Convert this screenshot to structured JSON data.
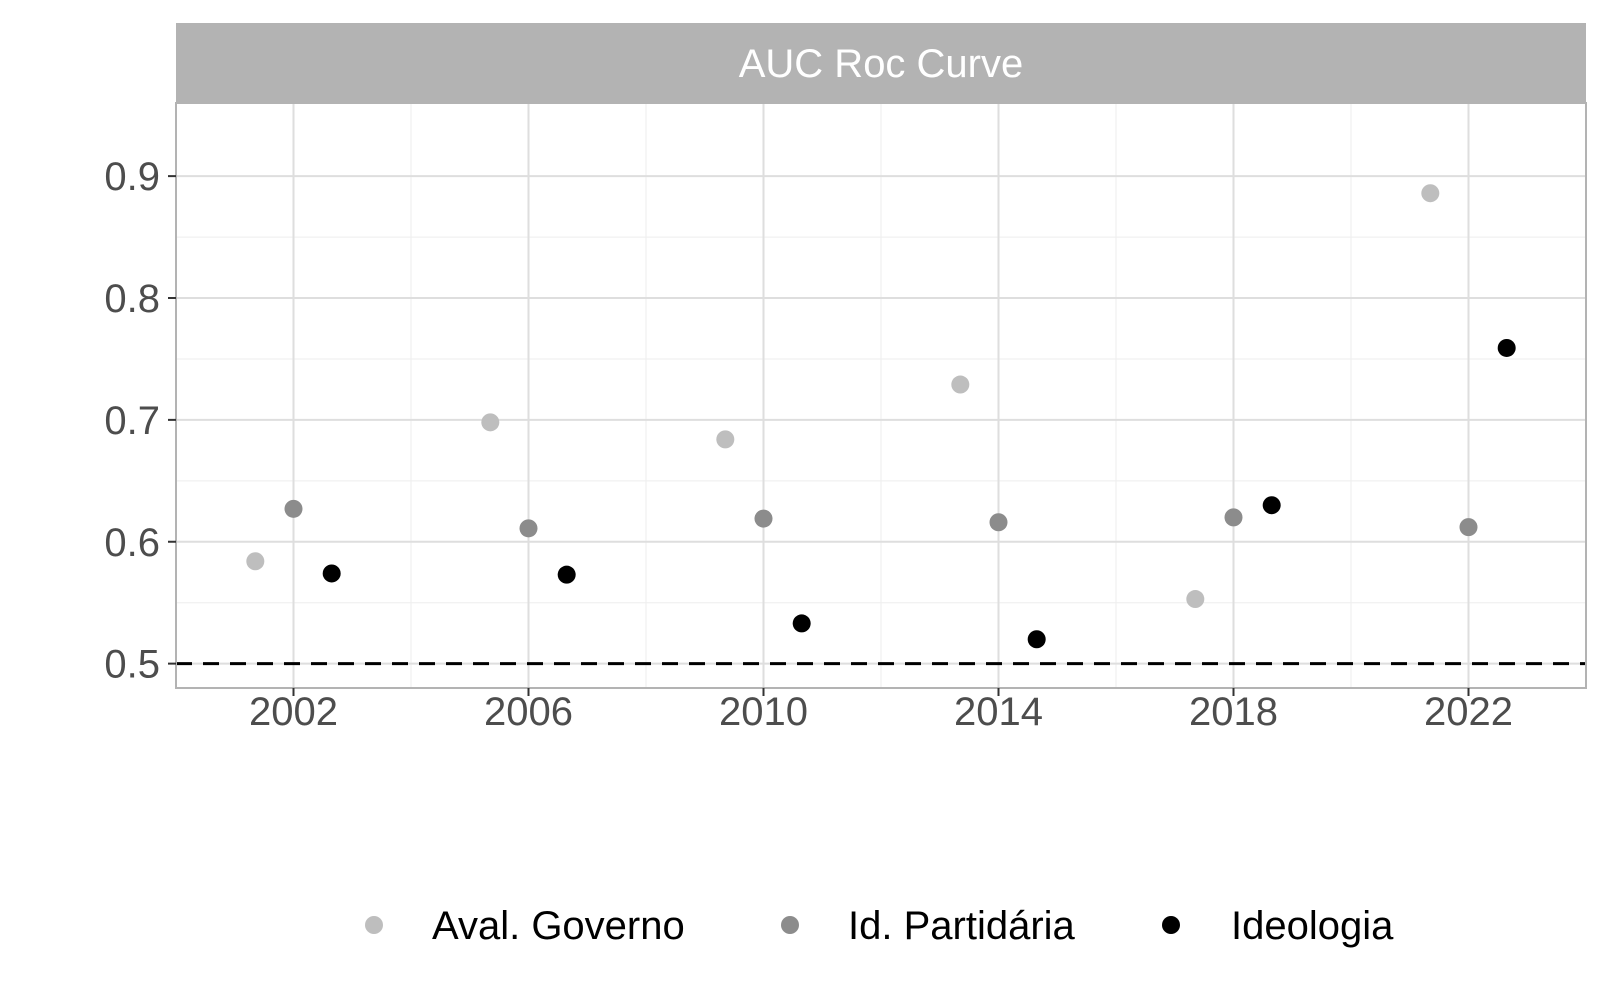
{
  "chart_data": {
    "type": "scatter",
    "title": "AUC Roc Curve",
    "xlabel": "",
    "ylabel": "",
    "xlim": [
      2000,
      2024
    ],
    "ylim": [
      0.48,
      0.96
    ],
    "x_ticks": [
      2002,
      2006,
      2010,
      2014,
      2018,
      2022
    ],
    "y_ticks": [
      0.5,
      0.6,
      0.7,
      0.8,
      0.9
    ],
    "y_tick_labels": [
      "0.5",
      "0.6",
      "0.7",
      "0.8",
      "0.9"
    ],
    "reference_line": {
      "y": 0.5,
      "style": "dashed",
      "color": "#000000"
    },
    "grid": true,
    "legend_position": "bottom",
    "series": [
      {
        "name": "Aval. Governo",
        "color": "#bebebe",
        "x": [
          2002,
          2006,
          2010,
          2014,
          2018,
          2022
        ],
        "values": [
          0.584,
          0.698,
          0.684,
          0.729,
          0.553,
          0.886
        ]
      },
      {
        "name": "Id. Partidária",
        "color": "#8c8c8c",
        "x": [
          2002,
          2006,
          2010,
          2014,
          2018,
          2022
        ],
        "values": [
          0.627,
          0.611,
          0.619,
          0.616,
          0.62,
          0.612
        ]
      },
      {
        "name": "Ideologia",
        "color": "#000000",
        "x": [
          2002,
          2006,
          2010,
          2014,
          2018,
          2022
        ],
        "values": [
          0.574,
          0.573,
          0.533,
          0.52,
          0.63,
          0.759
        ]
      }
    ]
  }
}
